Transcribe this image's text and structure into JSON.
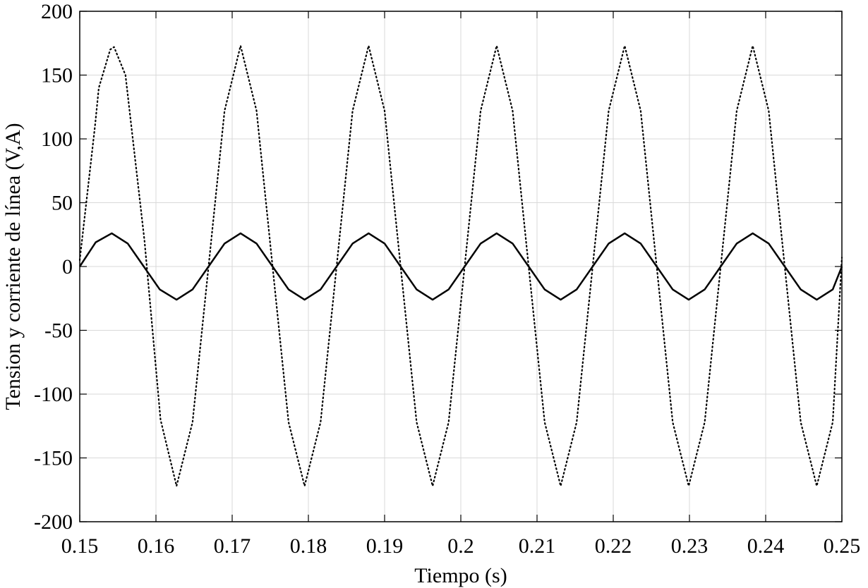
{
  "chart_data": {
    "type": "line",
    "title": "",
    "xlabel": "Tiempo (s)",
    "ylabel": "Tension y corriente de línea (V,A)",
    "xlim": [
      0.15,
      0.25
    ],
    "ylim": [
      -200,
      200
    ],
    "xticks": [
      0.15,
      0.16,
      0.17,
      0.18,
      0.19,
      0.2,
      0.21,
      0.22,
      0.23,
      0.24,
      0.25
    ],
    "xtick_labels": [
      "0.15",
      "0.16",
      "0.17",
      "0.18",
      "0.19",
      "0.2",
      "0.21",
      "0.22",
      "0.23",
      "0.24",
      "0.25"
    ],
    "yticks": [
      -200,
      -150,
      -100,
      -50,
      0,
      50,
      100,
      150,
      200
    ],
    "ytick_labels": [
      "-200",
      "-150",
      "-100",
      "-50",
      "0",
      "50",
      "100",
      "150",
      "200"
    ],
    "grid": true,
    "legend": "none",
    "series": [
      {
        "style": "dotted",
        "color": "#000000",
        "x": [
          0.15,
          0.152,
          0.1525,
          0.154,
          0.1545,
          0.156,
          0.1585,
          0.1606,
          0.1627,
          0.1648,
          0.1669,
          0.169,
          0.1711,
          0.1732,
          0.1753,
          0.1774,
          0.1795,
          0.1816,
          0.1837,
          0.1858,
          0.1879,
          0.19,
          0.1921,
          0.1942,
          0.1963,
          0.1984,
          0.2005,
          0.2026,
          0.2047,
          0.2068,
          0.2089,
          0.211,
          0.2131,
          0.2152,
          0.2173,
          0.2194,
          0.2215,
          0.2236,
          0.2257,
          0.2278,
          0.2299,
          0.232,
          0.2341,
          0.2362,
          0.2383,
          0.2404,
          0.2425,
          0.2446,
          0.2467,
          0.2488,
          0.25
        ],
        "y": [
          5,
          110,
          140,
          170,
          172,
          150,
          20,
          -120,
          -172,
          -122,
          0,
          122,
          173,
          122,
          0,
          -122,
          -172,
          -122,
          0,
          122,
          173,
          122,
          0,
          -122,
          -172,
          -122,
          0,
          122,
          173,
          122,
          0,
          -122,
          -172,
          -122,
          0,
          122,
          173,
          122,
          0,
          -122,
          -172,
          -122,
          0,
          122,
          173,
          122,
          0,
          -122,
          -172,
          -122,
          7
        ]
      },
      {
        "style": "solid",
        "color": "#000000",
        "x": [
          0.15,
          0.1521,
          0.1542,
          0.1563,
          0.1584,
          0.1605,
          0.1627,
          0.1648,
          0.1669,
          0.169,
          0.1711,
          0.1732,
          0.1753,
          0.1774,
          0.1795,
          0.1816,
          0.1837,
          0.1858,
          0.1879,
          0.19,
          0.1921,
          0.1942,
          0.1963,
          0.1984,
          0.2005,
          0.2026,
          0.2047,
          0.2068,
          0.2089,
          0.211,
          0.2131,
          0.2152,
          0.2173,
          0.2194,
          0.2215,
          0.2236,
          0.2257,
          0.2278,
          0.2299,
          0.232,
          0.2341,
          0.2362,
          0.2383,
          0.2404,
          0.2425,
          0.2446,
          0.2467,
          0.2488,
          0.25
        ],
        "y": [
          0,
          19,
          26,
          18,
          0,
          -18,
          -26,
          -18,
          0,
          18,
          26,
          18,
          0,
          -18,
          -26,
          -18,
          0,
          18,
          26,
          18,
          0,
          -18,
          -26,
          -18,
          0,
          18,
          26,
          18,
          0,
          -18,
          -26,
          -18,
          0,
          18,
          26,
          18,
          0,
          -18,
          -26,
          -18,
          0,
          18,
          26,
          18,
          0,
          -18,
          -26,
          -18,
          0
        ]
      }
    ]
  }
}
